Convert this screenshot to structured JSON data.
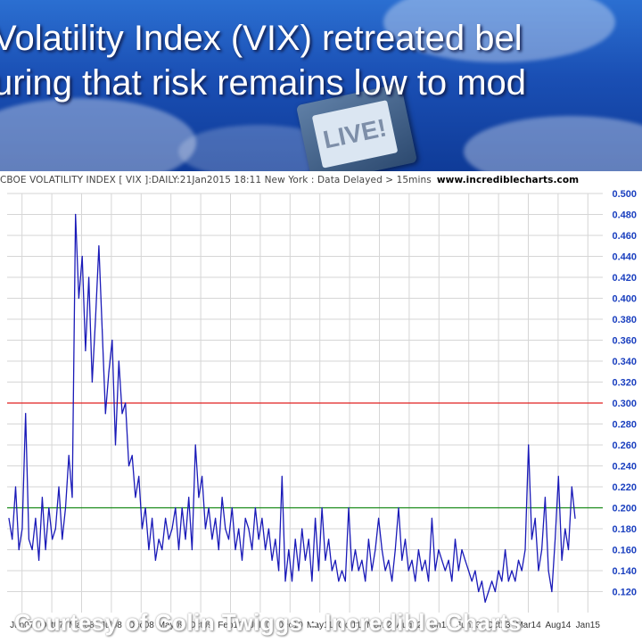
{
  "header": {
    "headline_line1": "Volatility Index (VIX) retreated bel",
    "headline_line2": "uring that risk remains low to mod",
    "card_text": "LIVE!"
  },
  "chart_info": {
    "text": "CBOE VOLATILITY INDEX [ VIX ]:DAILY:21Jan2015 18:11 New York : Data Delayed > 15mins",
    "site": "www.incrediblecharts.com"
  },
  "footer": {
    "courtesy": "Courtesy of Colin Twiggs - Incredible Charts"
  },
  "colors": {
    "series": "#1a1ab8",
    "ref_high": "#e02020",
    "ref_low": "#1a8a1a",
    "tick_labels": "#1a3fbf",
    "grid": "#d6d6d6"
  },
  "chart_data": {
    "type": "line",
    "title": "CBOE VOLATILITY INDEX [ VIX ]:DAILY:21Jan2015 18:11 New York : Data Delayed > 15mins",
    "xlabel": "",
    "ylabel": "",
    "ylim": [
      0.1,
      0.5
    ],
    "x_tick_labels": [
      "Jun07",
      "Oct07",
      "Mar08",
      "Jul08",
      "Dec08",
      "May09",
      "Oct09",
      "Feb10",
      "Jul10",
      "Dec10",
      "May11",
      "Oct11",
      "Mar12",
      "Aug12",
      "Jan13",
      "Jun13",
      "Oct13",
      "Mar14",
      "Aug14",
      "Jan15"
    ],
    "y_ticks": [
      "0.120",
      "0.140",
      "0.160",
      "0.180",
      "0.200",
      "0.220",
      "0.240",
      "0.260",
      "0.280",
      "0.300",
      "0.320",
      "0.340",
      "0.360",
      "0.380",
      "0.400",
      "0.420",
      "0.440",
      "0.460",
      "0.480",
      "0.500"
    ],
    "reference_lines": [
      {
        "value": 0.3,
        "color": "#e02020"
      },
      {
        "value": 0.2,
        "color": "#1a8a1a"
      }
    ],
    "grid": true,
    "series": [
      {
        "values": [
          0.19,
          0.17,
          0.22,
          0.16,
          0.18,
          0.29,
          0.17,
          0.16,
          0.19,
          0.15,
          0.21,
          0.16,
          0.2,
          0.17,
          0.18,
          0.22,
          0.17,
          0.2,
          0.25,
          0.21,
          0.48,
          0.4,
          0.44,
          0.35,
          0.42,
          0.32,
          0.38,
          0.45,
          0.37,
          0.29,
          0.33,
          0.36,
          0.26,
          0.34,
          0.29,
          0.3,
          0.24,
          0.25,
          0.21,
          0.23,
          0.18,
          0.2,
          0.16,
          0.19,
          0.15,
          0.17,
          0.16,
          0.19,
          0.17,
          0.18,
          0.2,
          0.16,
          0.2,
          0.17,
          0.21,
          0.16,
          0.26,
          0.21,
          0.23,
          0.18,
          0.2,
          0.17,
          0.19,
          0.16,
          0.21,
          0.18,
          0.17,
          0.2,
          0.16,
          0.18,
          0.15,
          0.19,
          0.18,
          0.16,
          0.2,
          0.17,
          0.19,
          0.16,
          0.18,
          0.15,
          0.17,
          0.14,
          0.23,
          0.13,
          0.16,
          0.13,
          0.17,
          0.14,
          0.18,
          0.15,
          0.17,
          0.13,
          0.19,
          0.14,
          0.2,
          0.15,
          0.17,
          0.14,
          0.15,
          0.13,
          0.14,
          0.13,
          0.2,
          0.14,
          0.16,
          0.14,
          0.15,
          0.13,
          0.17,
          0.14,
          0.16,
          0.19,
          0.16,
          0.14,
          0.15,
          0.13,
          0.16,
          0.2,
          0.15,
          0.17,
          0.14,
          0.15,
          0.13,
          0.16,
          0.14,
          0.15,
          0.13,
          0.19,
          0.14,
          0.16,
          0.15,
          0.14,
          0.15,
          0.13,
          0.17,
          0.14,
          0.16,
          0.15,
          0.14,
          0.13,
          0.14,
          0.12,
          0.13,
          0.11,
          0.12,
          0.13,
          0.12,
          0.14,
          0.13,
          0.16,
          0.13,
          0.14,
          0.13,
          0.15,
          0.14,
          0.16,
          0.26,
          0.17,
          0.19,
          0.14,
          0.16,
          0.21,
          0.14,
          0.12,
          0.17,
          0.23,
          0.15,
          0.18,
          0.16,
          0.22,
          0.19
        ]
      }
    ]
  }
}
